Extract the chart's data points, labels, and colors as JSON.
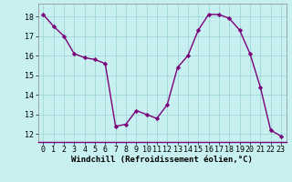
{
  "x": [
    0,
    1,
    2,
    3,
    4,
    5,
    6,
    7,
    8,
    9,
    10,
    11,
    12,
    13,
    14,
    15,
    16,
    17,
    18,
    19,
    20,
    21,
    22,
    23
  ],
  "y": [
    18.1,
    17.5,
    17.0,
    16.1,
    15.9,
    15.8,
    15.6,
    12.4,
    12.5,
    13.2,
    13.0,
    12.8,
    13.5,
    15.4,
    16.0,
    17.3,
    18.1,
    18.1,
    17.9,
    17.3,
    16.1,
    14.4,
    12.2,
    11.9
  ],
  "line_color": "#7a007a",
  "marker": "D",
  "marker_size": 2.2,
  "bg_color": "#c8f0f0",
  "grid_color": "#a0d8d8",
  "xlabel": "Windchill (Refroidissement éolien,°C)",
  "ylabel_ticks": [
    12,
    13,
    14,
    15,
    16,
    17,
    18
  ],
  "xlim": [
    -0.5,
    23.5
  ],
  "ylim": [
    11.6,
    18.65
  ],
  "xlabel_fontsize": 6.5,
  "tick_fontsize": 6.0,
  "line_width": 1.0
}
